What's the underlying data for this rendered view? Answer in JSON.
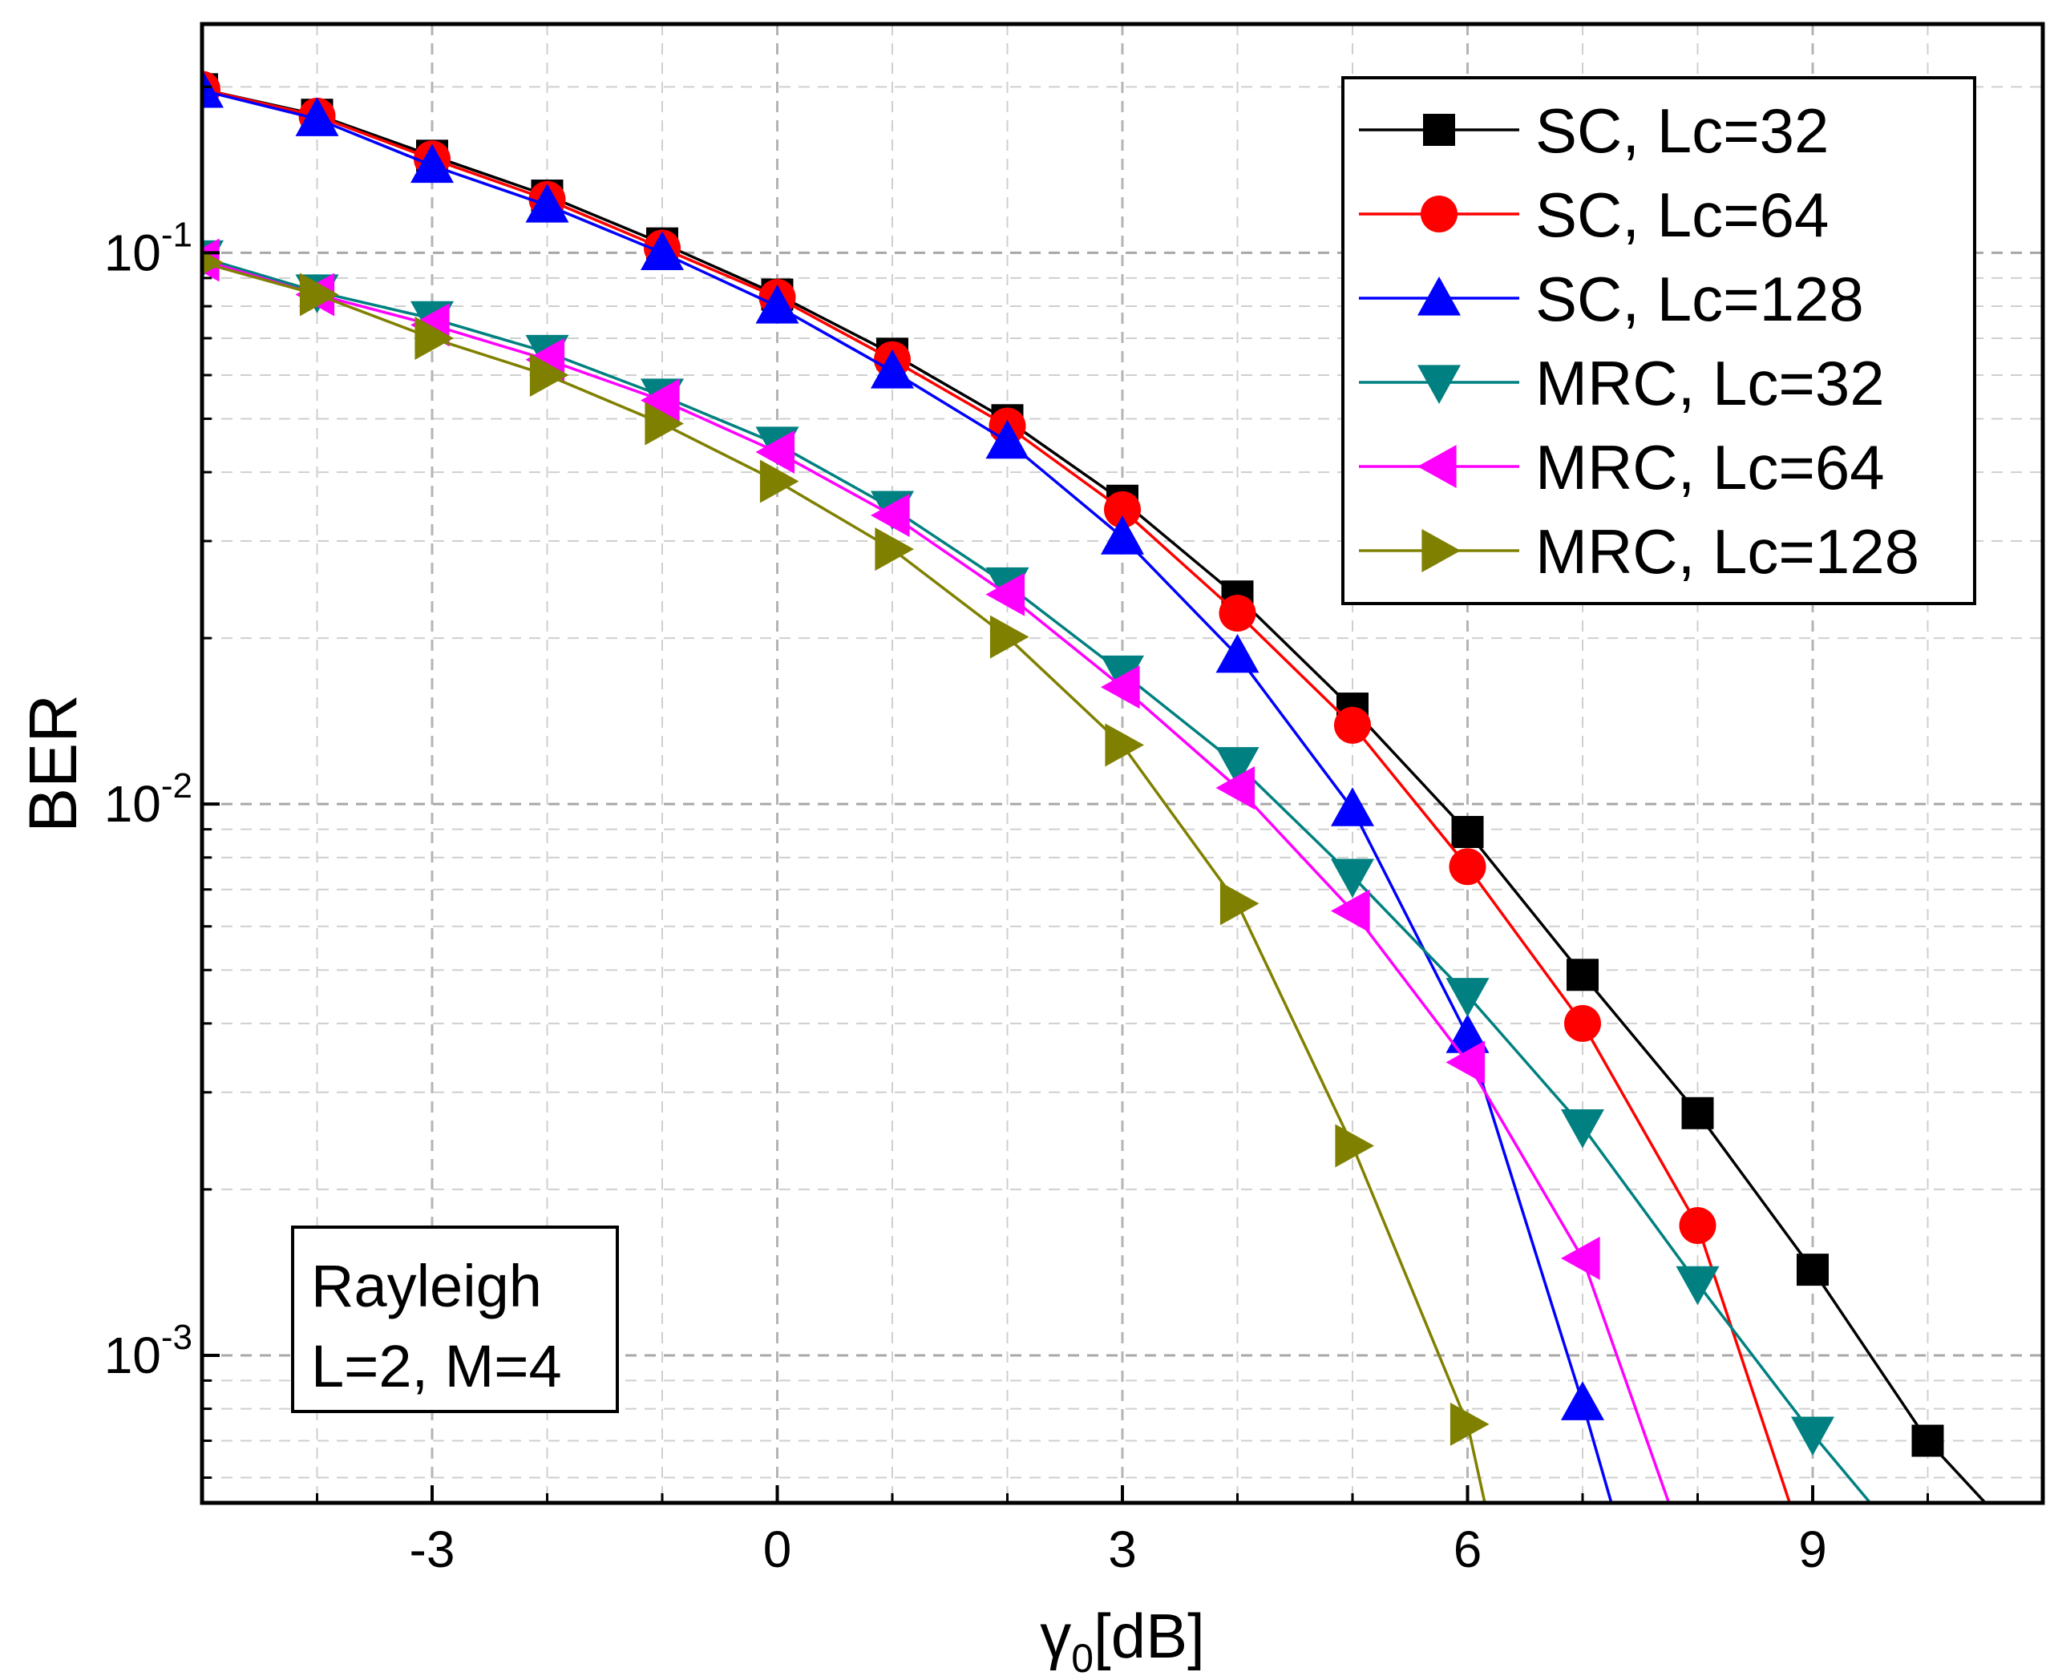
{
  "chart_data": {
    "type": "line",
    "title": "",
    "xlabel": "γ0[dB]",
    "xlabel_main": "γ",
    "xlabel_sub": "0",
    "xlabel_unit": "[dB]",
    "ylabel": "BER",
    "yscale": "log",
    "xlim": [
      -5,
      11
    ],
    "ylim": [
      0.00054,
      0.26
    ],
    "grid": true,
    "legend_position": "top-right",
    "x_ticks": [
      -3,
      0,
      3,
      6,
      9
    ],
    "x_tick_labels": [
      "-3",
      "0",
      "3",
      "6",
      "9"
    ],
    "y_ticks": [
      {
        "value": 0.1,
        "base": "10",
        "exp": "-1"
      },
      {
        "value": 0.01,
        "base": "10",
        "exp": "-2"
      },
      {
        "value": 0.001,
        "base": "10",
        "exp": "-3"
      }
    ],
    "annotation": [
      "Rayleigh",
      "L=2, M=4"
    ],
    "series": [
      {
        "name": "SC, Lc=32",
        "color": "#000000",
        "marker": "square",
        "x": [
          -5,
          -4,
          -3,
          -2,
          -1,
          0,
          1,
          2,
          3,
          4,
          5,
          6,
          7,
          8,
          9,
          10,
          10.5
        ],
        "y": [
          0.198,
          0.178,
          0.15,
          0.127,
          0.104,
          0.084,
          0.0656,
          0.0497,
          0.0355,
          0.0238,
          0.0149,
          0.0089,
          0.0049,
          0.00275,
          0.00143,
          0.0007,
          0.00054
        ]
      },
      {
        "name": "SC, Lc=64",
        "color": "#ff0000",
        "marker": "circle",
        "x": [
          -5,
          -4,
          -3,
          -2,
          -1,
          0,
          1,
          2,
          3,
          4,
          5,
          6,
          7,
          8,
          8.8
        ],
        "y": [
          0.198,
          0.177,
          0.148,
          0.125,
          0.102,
          0.083,
          0.064,
          0.0485,
          0.0342,
          0.0222,
          0.0139,
          0.0077,
          0.004,
          0.00172,
          0.00054
        ]
      },
      {
        "name": "SC, Lc=128",
        "color": "#0000ff",
        "marker": "triangle-up",
        "x": [
          -5,
          -4,
          -3,
          -2,
          -1,
          0,
          1,
          2,
          3,
          4,
          5,
          6,
          7,
          7.25
        ],
        "y": [
          0.197,
          0.175,
          0.144,
          0.122,
          0.1,
          0.08,
          0.061,
          0.0455,
          0.0305,
          0.0186,
          0.0098,
          0.0038,
          0.00082,
          0.00054
        ]
      },
      {
        "name": "MRC, Lc=32",
        "color": "#008080",
        "marker": "triangle-down",
        "x": [
          -5,
          -4,
          -3,
          -2,
          -1,
          0,
          1,
          2,
          3,
          4,
          5,
          6,
          7,
          8,
          9,
          9.5
        ],
        "y": [
          0.098,
          0.085,
          0.076,
          0.066,
          0.055,
          0.045,
          0.0344,
          0.025,
          0.0173,
          0.0118,
          0.0074,
          0.0045,
          0.0026,
          0.00135,
          0.00072,
          0.00054
        ]
      },
      {
        "name": "MRC, Lc=64",
        "color": "#ff00ff",
        "marker": "triangle-left",
        "x": [
          -5,
          -4,
          -3,
          -2,
          -1,
          0,
          1,
          2,
          3,
          4,
          5,
          6,
          7,
          7.75
        ],
        "y": [
          0.097,
          0.084,
          0.074,
          0.064,
          0.054,
          0.0435,
          0.0334,
          0.024,
          0.0163,
          0.0107,
          0.0064,
          0.0034,
          0.0015,
          0.00054
        ]
      },
      {
        "name": "MRC, Lc=128",
        "color": "#808000",
        "marker": "triangle-right",
        "x": [
          -5,
          -4,
          -3,
          -2,
          -1,
          0,
          1,
          2,
          3,
          4,
          5,
          6,
          6.15
        ],
        "y": [
          0.096,
          0.084,
          0.07,
          0.06,
          0.049,
          0.0385,
          0.029,
          0.0201,
          0.0128,
          0.0066,
          0.0024,
          0.00075,
          0.00054
        ]
      }
    ]
  }
}
